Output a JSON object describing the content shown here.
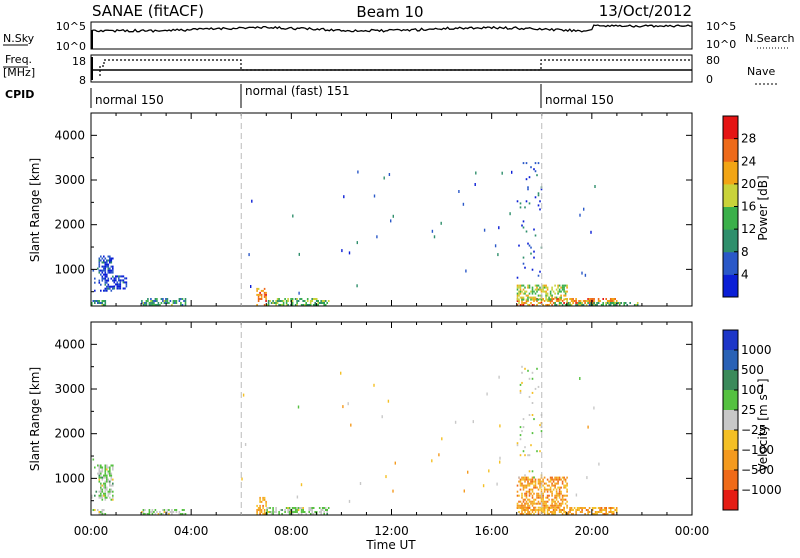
{
  "header": {
    "station": "SANAE (fitACF)",
    "beam": "Beam 10",
    "date": "13/Oct/2012"
  },
  "mini_panels": {
    "nsky_label": "N.Sky",
    "nsky_ticks": [
      "10^5",
      "10^0"
    ],
    "nsearch_label": "N.Search",
    "nsearch_ticks": [
      "10^5",
      "10^0"
    ],
    "freq_label_top": "Freq.",
    "freq_label_bottom": "[MHz]",
    "freq_ticks": [
      "18",
      "8"
    ],
    "nave_label": "Nave",
    "nave_ticks": [
      "80",
      "0"
    ],
    "cpid_label": "CPID",
    "cpid_segments": [
      {
        "label": "normal 150",
        "start_hour": 0
      },
      {
        "label": "normal (fast) 151",
        "start_hour": 6
      },
      {
        "label": "normal 150",
        "start_hour": 18
      }
    ]
  },
  "x_axis": {
    "label": "Time UT",
    "tick_labels": [
      "00:00",
      "04:00",
      "08:00",
      "12:00",
      "16:00",
      "20:00",
      "00:00"
    ],
    "range_hours": [
      0,
      24
    ]
  },
  "power_panel": {
    "ylabel": "Slant Range [km]",
    "yticks": [
      "1000",
      "2000",
      "3000",
      "4000"
    ],
    "colorbar_label": "Power [dB]",
    "colorbar_ticks": [
      "4",
      "8",
      "12",
      "16",
      "20",
      "24",
      "28"
    ],
    "colorbar_colors": [
      "#0b1fd6",
      "#2a58c8",
      "#2f8f6c",
      "#3bb04a",
      "#c9d33a",
      "#f2a515",
      "#ee6a1a",
      "#e51414"
    ]
  },
  "velocity_panel": {
    "ylabel": "Slant Range [km]",
    "yticks": [
      "1000",
      "2000",
      "3000",
      "4000"
    ],
    "colorbar_label": "Velocity [m s⁻¹]",
    "colorbar_ticks": [
      "1000",
      "500",
      "100",
      "25",
      "−25",
      "−100",
      "−500",
      "−1000"
    ],
    "colorbar_colors": [
      "#1d36c8",
      "#2a62b6",
      "#3b8a5a",
      "#55c140",
      "#c8c8c8",
      "#f4c025",
      "#f49a1e",
      "#ef6a18",
      "#e51c14"
    ]
  },
  "chart_data": {
    "type": "heatmap",
    "x_range_hours": [
      0,
      24
    ],
    "y_range_km": [
      180,
      4500
    ],
    "mode_change_hours": [
      6,
      18
    ],
    "power_clusters": [
      {
        "t0": 0.0,
        "t1": 0.6,
        "r0": 180,
        "r1": 300,
        "level": 0.35
      },
      {
        "t0": 0.0,
        "t1": 0.3,
        "r0": 500,
        "r1": 1600,
        "level": 0.2
      },
      {
        "t0": 0.3,
        "t1": 0.9,
        "r0": 500,
        "r1": 1300,
        "level": 0.12
      },
      {
        "t0": 0.9,
        "t1": 1.4,
        "r0": 550,
        "r1": 850,
        "level": 0.1
      },
      {
        "t0": 2.0,
        "t1": 3.8,
        "r0": 180,
        "r1": 320,
        "level": 0.35
      },
      {
        "t0": 6.6,
        "t1": 7.0,
        "r0": 180,
        "r1": 550,
        "level": 0.75
      },
      {
        "t0": 7.0,
        "t1": 9.5,
        "r0": 180,
        "r1": 320,
        "level": 0.45
      },
      {
        "t0": 17.0,
        "t1": 21.0,
        "r0": 180,
        "r1": 320,
        "level": 0.75
      },
      {
        "t0": 17.0,
        "t1": 19.0,
        "r0": 300,
        "r1": 650,
        "level": 0.55
      },
      {
        "t0": 18.5,
        "t1": 21.8,
        "r0": 180,
        "r1": 260,
        "level": 0.4
      },
      {
        "t0": 17.0,
        "t1": 18.0,
        "r0": 700,
        "r1": 3500,
        "level": 0.15
      }
    ],
    "velocity_clusters": [
      {
        "t0": 0.0,
        "t1": 0.6,
        "r0": 180,
        "r1": 300,
        "level": 0.5
      },
      {
        "t0": 0.0,
        "t1": 0.3,
        "r0": 500,
        "r1": 1600,
        "level": 0.45
      },
      {
        "t0": 0.3,
        "t1": 0.9,
        "r0": 500,
        "r1": 1300,
        "level": 0.45
      },
      {
        "t0": 2.0,
        "t1": 3.8,
        "r0": 180,
        "r1": 300,
        "level": 0.45
      },
      {
        "t0": 6.6,
        "t1": 7.0,
        "r0": 180,
        "r1": 550,
        "level": 0.7
      },
      {
        "t0": 7.0,
        "t1": 9.5,
        "r0": 180,
        "r1": 320,
        "level": 0.45
      },
      {
        "t0": 17.0,
        "t1": 21.0,
        "r0": 180,
        "r1": 320,
        "level": 0.68
      },
      {
        "t0": 17.0,
        "t1": 19.0,
        "r0": 320,
        "r1": 1000,
        "level": 0.72
      },
      {
        "t0": 17.0,
        "t1": 18.0,
        "r0": 1000,
        "r1": 3500,
        "level": 0.5
      }
    ],
    "scattered_echoes_hours": [
      6.2,
      8.2,
      10.0,
      10.5,
      11.5,
      12.0,
      13.8,
      14.8,
      15.5,
      16.0,
      16.5,
      19.5,
      20.0
    ]
  }
}
